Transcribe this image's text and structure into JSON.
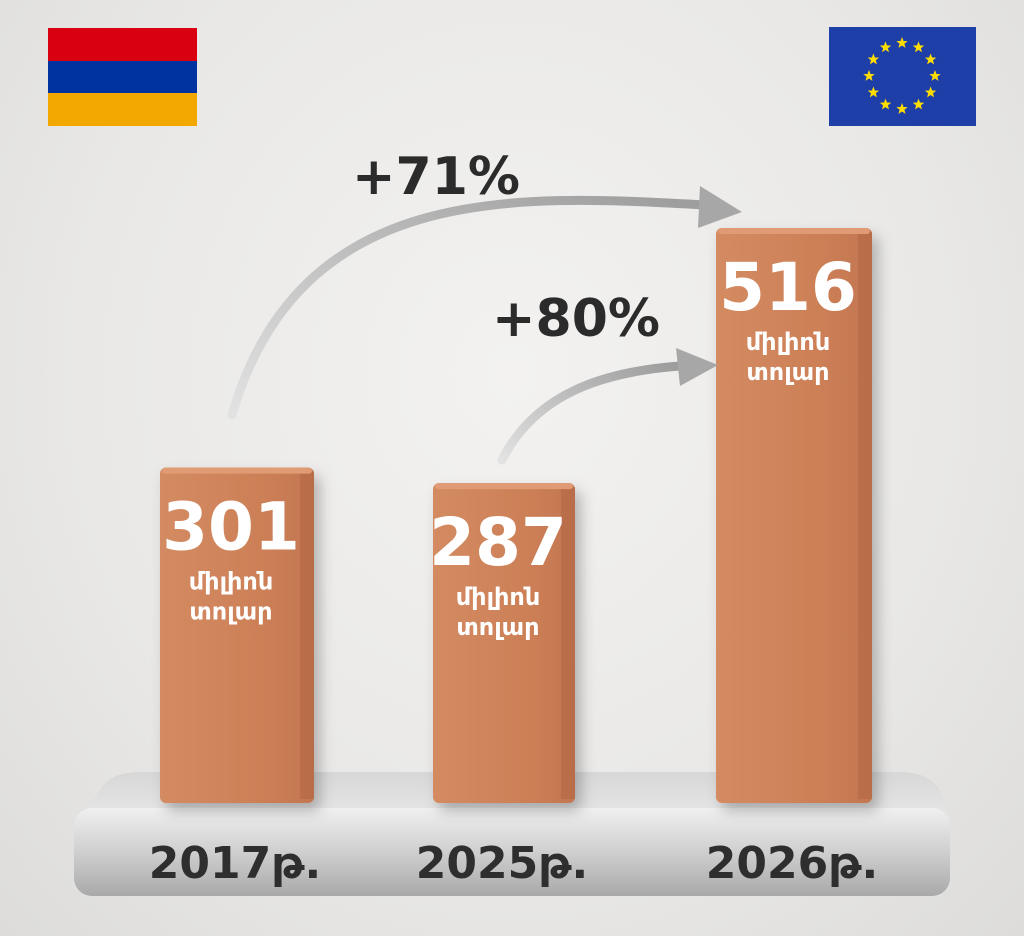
{
  "chart_data": {
    "type": "bar",
    "categories": [
      "2017թ.",
      "2025թ.",
      "2026թ."
    ],
    "values": [
      301,
      287,
      516
    ],
    "value_labels": [
      "301",
      "287",
      "516"
    ],
    "unit_label": [
      "միլիոն",
      "տոլար"
    ],
    "annotations": [
      {
        "text": "+71%",
        "from": "2017թ.",
        "to": "2026թ."
      },
      {
        "text": "+80%",
        "from": "2025թ.",
        "to": "2026թ."
      }
    ],
    "ylim": [
      0,
      560
    ],
    "grid": false,
    "legend": "none"
  },
  "flags": {
    "left": {
      "icon": "armenia-flag-icon",
      "colors": [
        "#d90012",
        "#0033a0",
        "#f2a800"
      ]
    },
    "right": {
      "icon": "eu-flag-icon",
      "background": "#1f3fa8",
      "star_color": "#ffdd00"
    }
  },
  "colors": {
    "bar_front": "#cf825a",
    "bar_side": "#a75f3c",
    "bar_top": "#e09a74",
    "arrow": "#c9c9c9",
    "base": "#c4c4c4"
  }
}
